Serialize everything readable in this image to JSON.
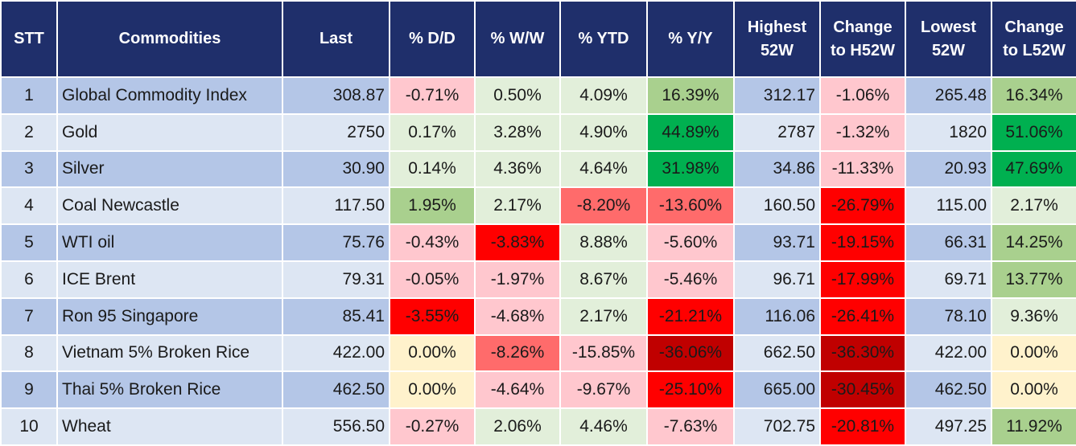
{
  "headers": [
    "STT",
    "Commodities",
    "Last",
    "% D/D",
    "% W/W",
    "% YTD",
    "% Y/Y",
    "Highest 52W",
    "Change to H52W",
    "Lowest 52W",
    "Change to L52W"
  ],
  "rows": [
    {
      "stt": "1",
      "name": "Global Commodity Index",
      "last": "308.87",
      "dd": "-0.71%",
      "ww": "0.50%",
      "ytd": "4.09%",
      "yy": "16.39%",
      "high": "312.17",
      "ch52": "-1.06%",
      "low": "265.48",
      "cl52": "16.34%"
    },
    {
      "stt": "2",
      "name": "Gold",
      "last": "2750",
      "dd": "0.17%",
      "ww": "3.28%",
      "ytd": "4.90%",
      "yy": "44.89%",
      "high": "2787",
      "ch52": "-1.32%",
      "low": "1820",
      "cl52": "51.06%"
    },
    {
      "stt": "3",
      "name": "Silver",
      "last": "30.90",
      "dd": "0.14%",
      "ww": "4.36%",
      "ytd": "4.64%",
      "yy": "31.98%",
      "high": "34.86",
      "ch52": "-11.33%",
      "low": "20.93",
      "cl52": "47.69%"
    },
    {
      "stt": "4",
      "name": "Coal Newcastle",
      "last": "117.50",
      "dd": "1.95%",
      "ww": "2.17%",
      "ytd": "-8.20%",
      "yy": "-13.60%",
      "high": "160.50",
      "ch52": "-26.79%",
      "low": "115.00",
      "cl52": "2.17%"
    },
    {
      "stt": "5",
      "name": "WTI oil",
      "last": "75.76",
      "dd": "-0.43%",
      "ww": "-3.83%",
      "ytd": "8.88%",
      "yy": "-5.60%",
      "high": "93.71",
      "ch52": "-19.15%",
      "low": "66.31",
      "cl52": "14.25%"
    },
    {
      "stt": "6",
      "name": "ICE Brent",
      "last": "79.31",
      "dd": "-0.05%",
      "ww": "-1.97%",
      "ytd": "8.67%",
      "yy": "-5.46%",
      "high": "96.71",
      "ch52": "-17.99%",
      "low": "69.71",
      "cl52": "13.77%"
    },
    {
      "stt": "7",
      "name": "Ron 95 Singapore",
      "last": "85.41",
      "dd": "-3.55%",
      "ww": "-4.68%",
      "ytd": "2.17%",
      "yy": "-21.21%",
      "high": "116.06",
      "ch52": "-26.41%",
      "low": "78.10",
      "cl52": "9.36%"
    },
    {
      "stt": "8",
      "name": "Vietnam 5% Broken Rice",
      "last": "422.00",
      "dd": "0.00%",
      "ww": "-8.26%",
      "ytd": "-15.85%",
      "yy": "-36.06%",
      "high": "662.50",
      "ch52": "-36.30%",
      "low": "422.00",
      "cl52": "0.00%"
    },
    {
      "stt": "9",
      "name": "Thai 5% Broken Rice",
      "last": "462.50",
      "dd": "0.00%",
      "ww": "-4.64%",
      "ytd": "-9.67%",
      "yy": "-25.10%",
      "high": "665.00",
      "ch52": "-30.45%",
      "low": "462.50",
      "cl52": "0.00%"
    },
    {
      "stt": "10",
      "name": "Wheat",
      "last": "556.50",
      "dd": "-0.27%",
      "ww": "2.06%",
      "ytd": "4.46%",
      "yy": "-7.63%",
      "high": "702.75",
      "ch52": "-20.81%",
      "low": "497.25",
      "cl52": "11.92%"
    }
  ],
  "colors": {
    "header_bg": "#1f2f6b",
    "header_text": "#ffffff",
    "row_odd": "#b4c6e7",
    "row_even": "#dde6f3",
    "heat": {
      "zero": "#fff2cc",
      "light_green": "#e2efda",
      "mid_green": "#a9d08e",
      "strong_green": "#00b050",
      "light_red": "#ffc7ce",
      "mid_red": "#ff6b6b",
      "strong_red": "#ff0000",
      "dark_red": "#c00000"
    }
  }
}
